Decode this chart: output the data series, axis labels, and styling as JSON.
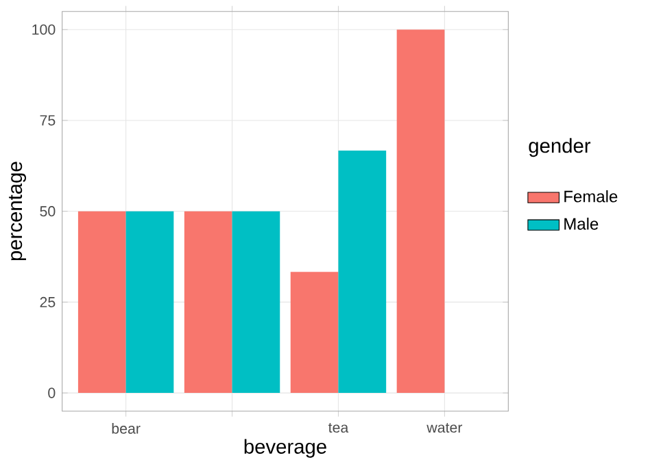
{
  "chart_data": {
    "type": "bar",
    "xlabel": "beverage",
    "ylabel": "percentage",
    "legend_title": "gender",
    "categories": [
      "bear",
      null,
      "tea",
      "water"
    ],
    "series": [
      {
        "name": "Female",
        "color": "#f8766d",
        "values": [
          50,
          50,
          33.3,
          100
        ]
      },
      {
        "name": "Male",
        "color": "#00bfc4",
        "values": [
          50,
          50,
          66.7,
          null
        ]
      }
    ],
    "ylim": [
      -5,
      105
    ],
    "yticks": [
      0,
      25,
      50,
      75,
      100
    ],
    "grid": true,
    "legend": "right"
  }
}
